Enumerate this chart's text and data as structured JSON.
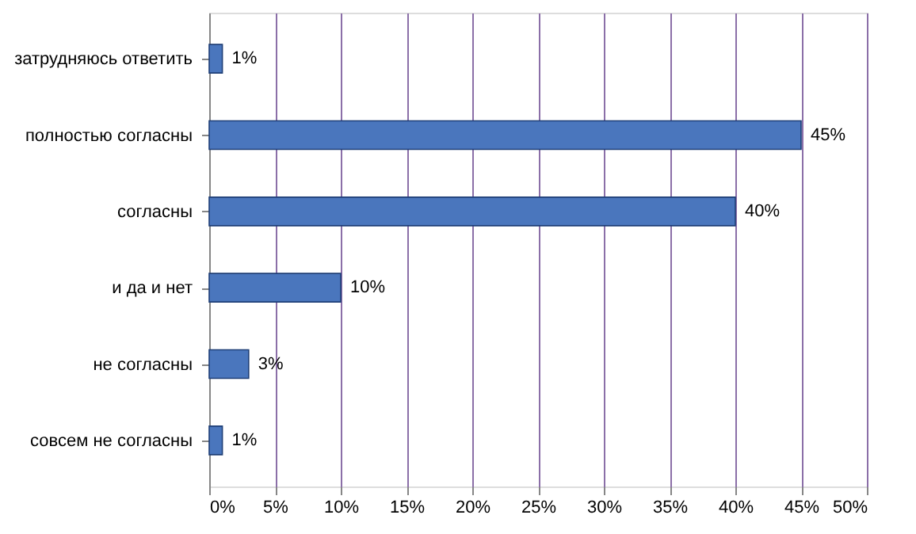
{
  "chart_data": {
    "type": "bar",
    "orientation": "horizontal",
    "categories": [
      "затрудняюсь ответить",
      "полностью согласны",
      "согласны",
      "и да и нет",
      "не согласны",
      "совсем не согласны"
    ],
    "values": [
      1,
      45,
      40,
      10,
      3,
      1
    ],
    "value_labels": [
      "1%",
      "45%",
      "40%",
      "10%",
      "3%",
      "1%"
    ],
    "color": "#4a76bd",
    "xlim": [
      0,
      50
    ],
    "xticks": [
      {
        "value": 0,
        "label": "0%"
      },
      {
        "value": 5,
        "label": "5%"
      },
      {
        "value": 10,
        "label": "10%"
      },
      {
        "value": 15,
        "label": "15%"
      },
      {
        "value": 20,
        "label": "20%"
      },
      {
        "value": 25,
        "label": "25%"
      },
      {
        "value": 30,
        "label": "30%"
      },
      {
        "value": 35,
        "label": "35%"
      },
      {
        "value": 40,
        "label": "40%"
      },
      {
        "value": 45,
        "label": "45%"
      },
      {
        "value": 50,
        "label": "50%"
      }
    ],
    "grid": "x"
  }
}
